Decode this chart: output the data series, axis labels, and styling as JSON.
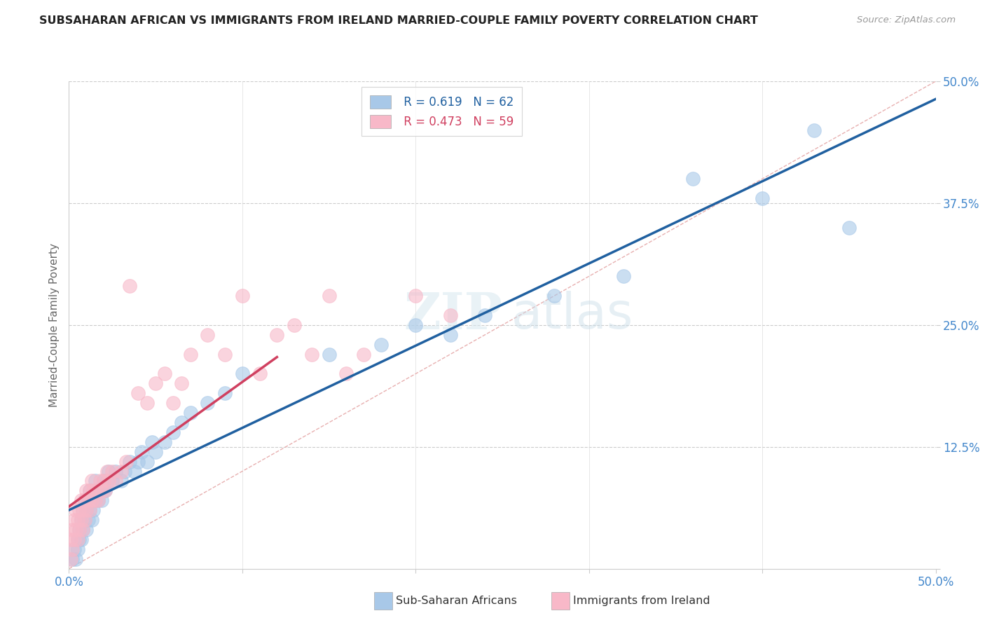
{
  "title": "SUBSAHARAN AFRICAN VS IMMIGRANTS FROM IRELAND MARRIED-COUPLE FAMILY POVERTY CORRELATION CHART",
  "source": "Source: ZipAtlas.com",
  "ylabel": "Married-Couple Family Poverty",
  "xlim": [
    0,
    0.5
  ],
  "ylim": [
    0,
    0.5
  ],
  "r_blue": 0.619,
  "n_blue": 62,
  "r_pink": 0.473,
  "n_pink": 59,
  "blue_color": "#a8c8e8",
  "pink_color": "#f8b8c8",
  "blue_line_color": "#2060a0",
  "pink_line_color": "#d04060",
  "diag_color": "#ddaaaa",
  "grid_color": "#cccccc",
  "blue_scatter_x": [
    0.002,
    0.003,
    0.004,
    0.005,
    0.005,
    0.006,
    0.006,
    0.007,
    0.007,
    0.008,
    0.008,
    0.009,
    0.009,
    0.01,
    0.01,
    0.011,
    0.011,
    0.012,
    0.012,
    0.013,
    0.013,
    0.014,
    0.015,
    0.015,
    0.016,
    0.017,
    0.018,
    0.019,
    0.02,
    0.02,
    0.021,
    0.022,
    0.023,
    0.025,
    0.027,
    0.03,
    0.032,
    0.035,
    0.038,
    0.04,
    0.042,
    0.045,
    0.048,
    0.05,
    0.055,
    0.06,
    0.065,
    0.07,
    0.08,
    0.09,
    0.1,
    0.15,
    0.18,
    0.2,
    0.22,
    0.24,
    0.28,
    0.32,
    0.36,
    0.4,
    0.43,
    0.45
  ],
  "blue_scatter_y": [
    0.01,
    0.02,
    0.01,
    0.03,
    0.02,
    0.03,
    0.04,
    0.03,
    0.05,
    0.04,
    0.06,
    0.05,
    0.07,
    0.04,
    0.06,
    0.05,
    0.07,
    0.06,
    0.08,
    0.05,
    0.07,
    0.06,
    0.07,
    0.09,
    0.08,
    0.07,
    0.08,
    0.07,
    0.08,
    0.09,
    0.08,
    0.09,
    0.1,
    0.09,
    0.1,
    0.09,
    0.1,
    0.11,
    0.1,
    0.11,
    0.12,
    0.11,
    0.13,
    0.12,
    0.13,
    0.14,
    0.15,
    0.16,
    0.17,
    0.18,
    0.2,
    0.22,
    0.23,
    0.25,
    0.24,
    0.26,
    0.28,
    0.3,
    0.4,
    0.38,
    0.45,
    0.35
  ],
  "pink_scatter_x": [
    0.001,
    0.001,
    0.002,
    0.002,
    0.003,
    0.003,
    0.004,
    0.004,
    0.005,
    0.005,
    0.006,
    0.006,
    0.007,
    0.007,
    0.008,
    0.008,
    0.009,
    0.009,
    0.01,
    0.01,
    0.011,
    0.012,
    0.012,
    0.013,
    0.013,
    0.014,
    0.015,
    0.016,
    0.017,
    0.018,
    0.019,
    0.02,
    0.021,
    0.022,
    0.023,
    0.025,
    0.027,
    0.03,
    0.033,
    0.035,
    0.04,
    0.045,
    0.05,
    0.055,
    0.06,
    0.065,
    0.07,
    0.08,
    0.09,
    0.1,
    0.11,
    0.12,
    0.13,
    0.14,
    0.15,
    0.16,
    0.17,
    0.2,
    0.22
  ],
  "pink_scatter_y": [
    0.01,
    0.03,
    0.02,
    0.04,
    0.03,
    0.05,
    0.04,
    0.06,
    0.03,
    0.05,
    0.04,
    0.06,
    0.05,
    0.07,
    0.04,
    0.06,
    0.05,
    0.07,
    0.06,
    0.08,
    0.07,
    0.06,
    0.08,
    0.07,
    0.09,
    0.08,
    0.07,
    0.08,
    0.07,
    0.09,
    0.08,
    0.09,
    0.08,
    0.1,
    0.09,
    0.1,
    0.09,
    0.1,
    0.11,
    0.29,
    0.18,
    0.17,
    0.19,
    0.2,
    0.17,
    0.19,
    0.22,
    0.24,
    0.22,
    0.28,
    0.2,
    0.24,
    0.25,
    0.22,
    0.28,
    0.2,
    0.22,
    0.28,
    0.26
  ]
}
